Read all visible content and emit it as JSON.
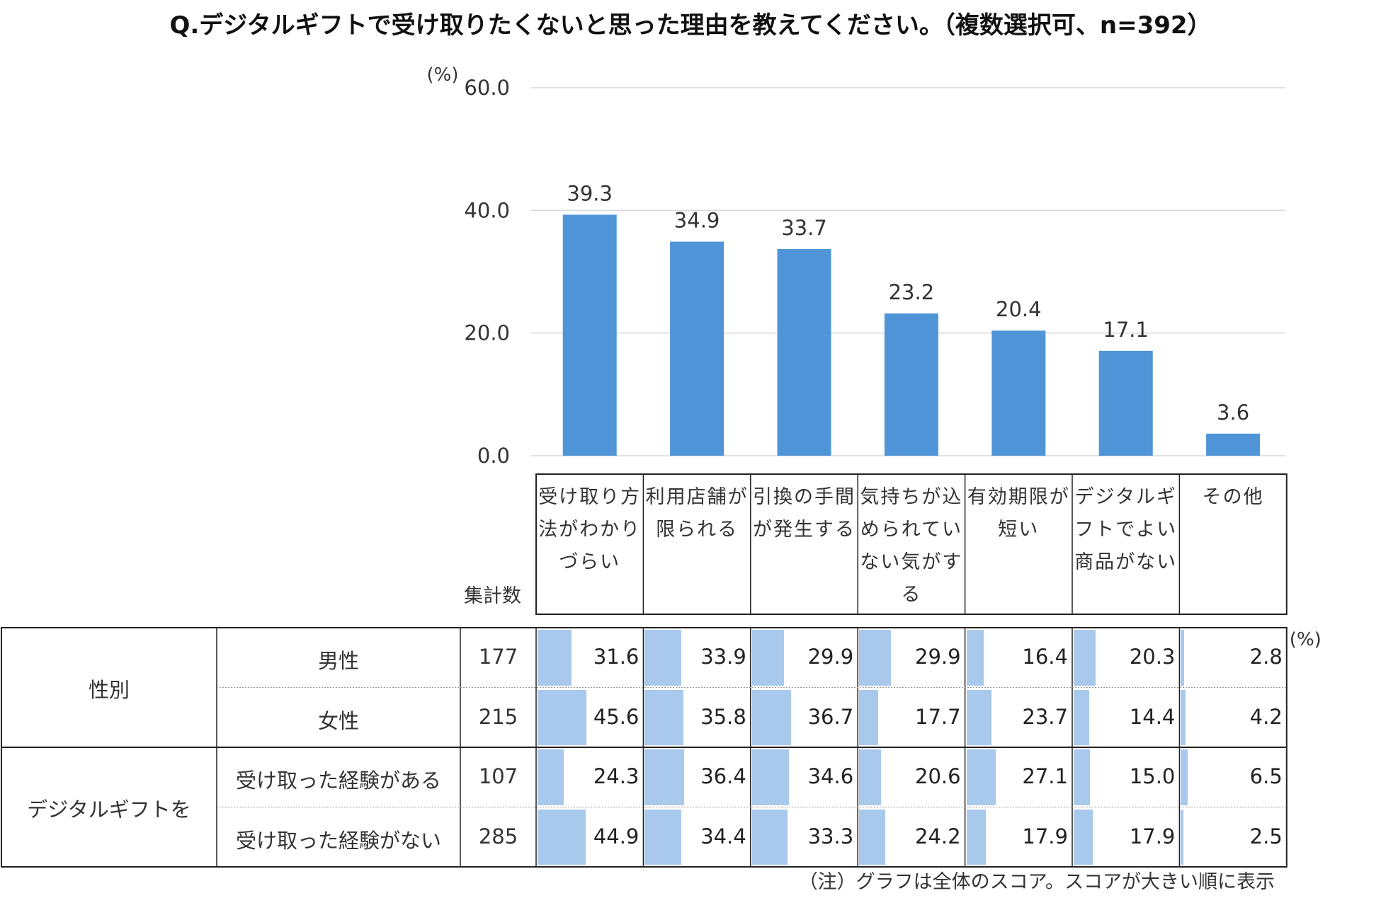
{
  "title": "Q.デジタルギフトで受け取りたくないと思った理由を教えてください。（複数選択可、n=392）",
  "chart_data": {
    "type": "bar",
    "title": "Q.デジタルギフトで受け取りたくないと思った理由を教えてください。（複数選択可、n=392）",
    "ylabel": "(%)",
    "ylim": [
      0,
      60
    ],
    "yticks": [
      "60.0",
      "40.0",
      "20.0",
      "0.0"
    ],
    "ytick_values": [
      60,
      40,
      20,
      0
    ],
    "categories": [
      "受け取り方法がわかりづらい",
      "利用店舗が限られる",
      "引換の手間が発生する",
      "気持ちが込められていない気がする",
      "有効期限が短い",
      "デジタルギフトでよい商品がない",
      "その他"
    ],
    "category_lines": [
      [
        "受け取り方",
        "法がわかり",
        "づらい"
      ],
      [
        "利用店舗が",
        "限られる"
      ],
      [
        "引換の手間",
        "が発生する"
      ],
      [
        "気持ちが込",
        "められてい",
        "ない気がす",
        "る"
      ],
      [
        "有効期限が",
        "短い"
      ],
      [
        "デジタルギ",
        "フトでよい",
        "商品がない"
      ],
      [
        "その他"
      ]
    ],
    "values": [
      39.3,
      34.9,
      33.7,
      23.2,
      20.4,
      17.1,
      3.6
    ],
    "value_labels": [
      "39.3",
      "34.9",
      "33.7",
      "23.2",
      "20.4",
      "17.1",
      "3.6"
    ],
    "bar_color": "#4f95d8",
    "grid": true
  },
  "table": {
    "count_header": "集計数",
    "unit": "(%)",
    "groups": [
      {
        "label": "性別",
        "rows": [
          {
            "label": "男性",
            "n": "177",
            "values": [
              "31.6",
              "33.9",
              "29.9",
              "29.9",
              "16.4",
              "20.3",
              "2.8"
            ]
          },
          {
            "label": "女性",
            "n": "215",
            "values": [
              "45.6",
              "35.8",
              "36.7",
              "17.7",
              "23.7",
              "14.4",
              "4.2"
            ]
          }
        ]
      },
      {
        "label": "デジタルギフトを",
        "rows": [
          {
            "label": "受け取った経験がある",
            "n": "107",
            "values": [
              "24.3",
              "36.4",
              "34.6",
              "20.6",
              "27.1",
              "15.0",
              "6.5"
            ]
          },
          {
            "label": "受け取った経験がない",
            "n": "285",
            "values": [
              "44.9",
              "34.4",
              "33.3",
              "24.2",
              "17.9",
              "17.9",
              "2.5"
            ]
          }
        ]
      }
    ],
    "cell_bar_color": "#a9c9ec"
  },
  "note": "（注）グラフは全体のスコア。スコアが大きい順に表示"
}
